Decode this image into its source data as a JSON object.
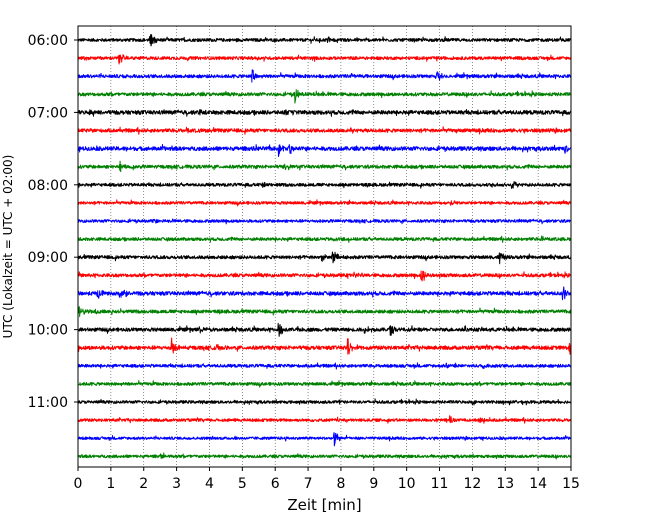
{
  "chart_data": {
    "type": "line",
    "title": "",
    "xlabel": "Zeit  [min]",
    "ylabel": "UTC (Lokalzeit = UTC + 02:00)",
    "xlim": [
      0,
      15
    ],
    "x_ticks": [
      "0",
      "1",
      "2",
      "3",
      "4",
      "5",
      "6",
      "7",
      "8",
      "9",
      "10",
      "11",
      "12",
      "13",
      "14",
      "15"
    ],
    "row_interval_minutes": 15,
    "grid": "vertical-dotted",
    "color_cycle": [
      "#000000",
      "#ff0000",
      "#0000ff",
      "#008000"
    ],
    "y_ticks": [
      {
        "label": "06:00",
        "row": 0
      },
      {
        "label": "07:00",
        "row": 4
      },
      {
        "label": "08:00",
        "row": 8
      },
      {
        "label": "09:00",
        "row": 12
      },
      {
        "label": "10:00",
        "row": 16
      },
      {
        "label": "11:00",
        "row": 20
      }
    ],
    "series": [
      {
        "start": "06:00",
        "noise": 0.7,
        "events": [
          [
            2.2,
            9
          ],
          [
            7.6,
            3
          ]
        ]
      },
      {
        "start": "06:15",
        "noise": 0.7,
        "events": [
          [
            1.25,
            8
          ],
          [
            0.2,
            2.5
          ]
        ]
      },
      {
        "start": "06:30",
        "noise": 0.75,
        "events": [
          [
            5.3,
            10
          ],
          [
            10.9,
            8
          ],
          [
            1.4,
            2
          ],
          [
            8.3,
            2
          ]
        ]
      },
      {
        "start": "06:45",
        "noise": 0.75,
        "events": [
          [
            6.6,
            8
          ],
          [
            10.6,
            2
          ]
        ]
      },
      {
        "start": "07:00",
        "noise": 0.9,
        "events": [
          [
            0.3,
            3
          ],
          [
            3.7,
            3
          ],
          [
            6.3,
            2
          ]
        ]
      },
      {
        "start": "07:15",
        "noise": 0.8,
        "events": [
          [
            8.3,
            3
          ],
          [
            3.3,
            2.5
          ],
          [
            11.5,
            2
          ]
        ]
      },
      {
        "start": "07:30",
        "noise": 0.9,
        "events": [
          [
            6.1,
            8
          ],
          [
            6.4,
            10
          ],
          [
            14.8,
            4
          ]
        ]
      },
      {
        "start": "07:45",
        "noise": 0.75,
        "events": [
          [
            1.25,
            7
          ],
          [
            6.3,
            3
          ]
        ]
      },
      {
        "start": "08:00",
        "noise": 0.7,
        "events": [
          [
            13.2,
            9
          ],
          [
            12.6,
            3
          ],
          [
            5.6,
            2
          ]
        ]
      },
      {
        "start": "08:15",
        "noise": 0.65,
        "events": [
          [
            11.3,
            2.5
          ]
        ]
      },
      {
        "start": "08:30",
        "noise": 0.65,
        "events": [
          [
            2.3,
            2
          ]
        ]
      },
      {
        "start": "08:45",
        "noise": 0.7,
        "events": [
          [
            7.75,
            3
          ],
          [
            14.1,
            2.5
          ]
        ]
      },
      {
        "start": "09:00",
        "noise": 0.75,
        "events": [
          [
            7.75,
            11
          ],
          [
            12.8,
            9
          ],
          [
            7.4,
            4
          ]
        ]
      },
      {
        "start": "09:15",
        "noise": 0.75,
        "events": [
          [
            10.45,
            10
          ],
          [
            8.2,
            2
          ]
        ]
      },
      {
        "start": "09:30",
        "noise": 0.85,
        "events": [
          [
            0.6,
            8
          ],
          [
            1.4,
            5
          ],
          [
            14.75,
            10
          ]
        ]
      },
      {
        "start": "09:45",
        "noise": 0.75,
        "events": [
          [
            0.05,
            9
          ],
          [
            0.5,
            3
          ]
        ]
      },
      {
        "start": "10:00",
        "noise": 0.8,
        "events": [
          [
            6.1,
            10
          ],
          [
            9.5,
            8
          ],
          [
            8.7,
            4
          ],
          [
            3.7,
            3
          ]
        ]
      },
      {
        "start": "10:15",
        "noise": 0.85,
        "events": [
          [
            2.85,
            11
          ],
          [
            8.2,
            10
          ],
          [
            14.95,
            9
          ],
          [
            4.2,
            3
          ]
        ]
      },
      {
        "start": "10:30",
        "noise": 0.7,
        "events": [
          [
            12.3,
            3
          ],
          [
            11.2,
            2
          ]
        ]
      },
      {
        "start": "10:45",
        "noise": 0.7,
        "events": [
          [
            1.1,
            2
          ]
        ]
      },
      {
        "start": "11:00",
        "noise": 0.65,
        "events": [
          [
            7.9,
            2
          ]
        ]
      },
      {
        "start": "11:15",
        "noise": 0.65,
        "events": [
          [
            11.3,
            6
          ],
          [
            12.2,
            2.5
          ]
        ]
      },
      {
        "start": "11:30",
        "noise": 0.6,
        "events": [
          [
            7.8,
            9
          ]
        ]
      },
      {
        "start": "11:45",
        "noise": 0.65,
        "events": [
          [
            2.5,
            2
          ]
        ]
      }
    ]
  }
}
